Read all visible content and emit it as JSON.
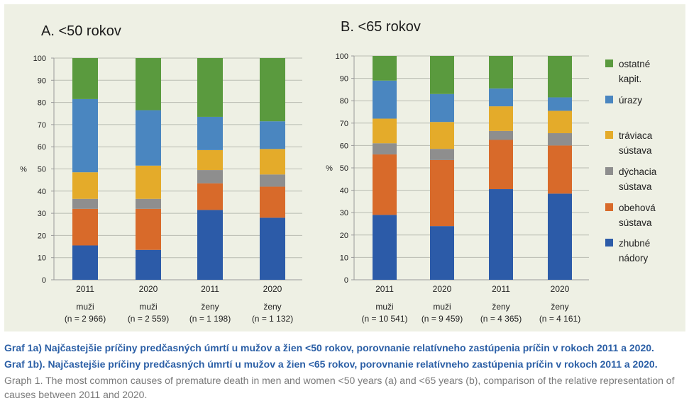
{
  "chart_data": [
    {
      "type": "bar",
      "stacked": true,
      "title": "A. <50 rokov",
      "ylabel": "%",
      "ylim": [
        0,
        100
      ],
      "yticks": [
        0,
        10,
        20,
        30,
        40,
        50,
        60,
        70,
        80,
        90,
        100
      ],
      "grid": true,
      "categories": [
        {
          "year": "2011",
          "group": "muži",
          "n": "(n = 2 966)"
        },
        {
          "year": "2020",
          "group": "muži",
          "n": "(n = 2 559)"
        },
        {
          "year": "2011",
          "group": "ženy",
          "n": "(n = 1 198)"
        },
        {
          "year": "2020",
          "group": "ženy",
          "n": "(n = 1 132)"
        }
      ],
      "series": [
        {
          "name": "zhubné nádory",
          "values": [
            15.5,
            13.5,
            31.5,
            28
          ]
        },
        {
          "name": "obehová sústava",
          "values": [
            16.5,
            18.5,
            12,
            14
          ]
        },
        {
          "name": "dýchacia sústava",
          "values": [
            4.5,
            4.5,
            6,
            5.5
          ]
        },
        {
          "name": "tráviaca sústava",
          "values": [
            12,
            15,
            9,
            11.5
          ]
        },
        {
          "name": "úrazy",
          "values": [
            33,
            25,
            15,
            12.5
          ]
        },
        {
          "name": "ostatné kapit.",
          "values": [
            18.5,
            23.5,
            26.5,
            28.5
          ]
        }
      ]
    },
    {
      "type": "bar",
      "stacked": true,
      "title": "B. <65 rokov",
      "ylabel": "%",
      "ylim": [
        0,
        100
      ],
      "yticks": [
        0,
        10,
        20,
        30,
        40,
        50,
        60,
        70,
        80,
        90,
        100
      ],
      "grid": true,
      "categories": [
        {
          "year": "2011",
          "group": "muži",
          "n": "(n = 10 541)"
        },
        {
          "year": "2020",
          "group": "muži",
          "n": "(n = 9 459)"
        },
        {
          "year": "2011",
          "group": "ženy",
          "n": "(n = 4 365)"
        },
        {
          "year": "2020",
          "group": "ženy",
          "n": "(n = 4 161)"
        }
      ],
      "series": [
        {
          "name": "zhubné nádory",
          "values": [
            29,
            24,
            40.5,
            38.5
          ]
        },
        {
          "name": "obehová sústava",
          "values": [
            27,
            29.5,
            22,
            21.5
          ]
        },
        {
          "name": "dýchacia sústava",
          "values": [
            5,
            5,
            4,
            5.5
          ]
        },
        {
          "name": "tráviaca sústava",
          "values": [
            11,
            12,
            11,
            10
          ]
        },
        {
          "name": "úrazy",
          "values": [
            17,
            12.5,
            8,
            6
          ]
        },
        {
          "name": "ostatné kapit.",
          "values": [
            11,
            17,
            14.5,
            18.5
          ]
        }
      ]
    }
  ],
  "legend": {
    "placement": "right",
    "items": [
      {
        "lines": [
          "ostatné",
          "kapit."
        ],
        "color": "#5a9a3e"
      },
      {
        "lines": [
          "úrazy"
        ],
        "color": "#4a86c0"
      },
      {
        "lines": [
          "tráviaca",
          "sústava"
        ],
        "color": "#e4ab2a"
      },
      {
        "lines": [
          "dýchacia",
          "sústava"
        ],
        "color": "#8e8e8e"
      },
      {
        "lines": [
          "obehová",
          "sústava"
        ],
        "color": "#d86a2a"
      },
      {
        "lines": [
          "zhubné",
          "nádory"
        ],
        "color": "#2c5ba8"
      }
    ]
  },
  "series_colors": [
    "#2c5ba8",
    "#d86a2a",
    "#8e8e8e",
    "#e4ab2a",
    "#4a86c0",
    "#5a9a3e"
  ],
  "captions": {
    "graf1a": "Graf 1a) Najčastejšie príčiny predčasných úmrtí u mužov a žien <50 rokov, porovnanie relatívneho zastúpenia príčin v rokoch 2011 a 2020.",
    "graf1b": "Graf 1b). Najčastejšie príčiny predčasných úmrtí u mužov a žien <65 rokov, porovnanie relatívneho zastúpenia príčin v rokoch 2011 a 2020.",
    "english": "Graph 1. The most common causes of premature death in men and women <50 years (a) and <65 years (b), comparison of the relative representation of causes between 2011 and 2020."
  }
}
